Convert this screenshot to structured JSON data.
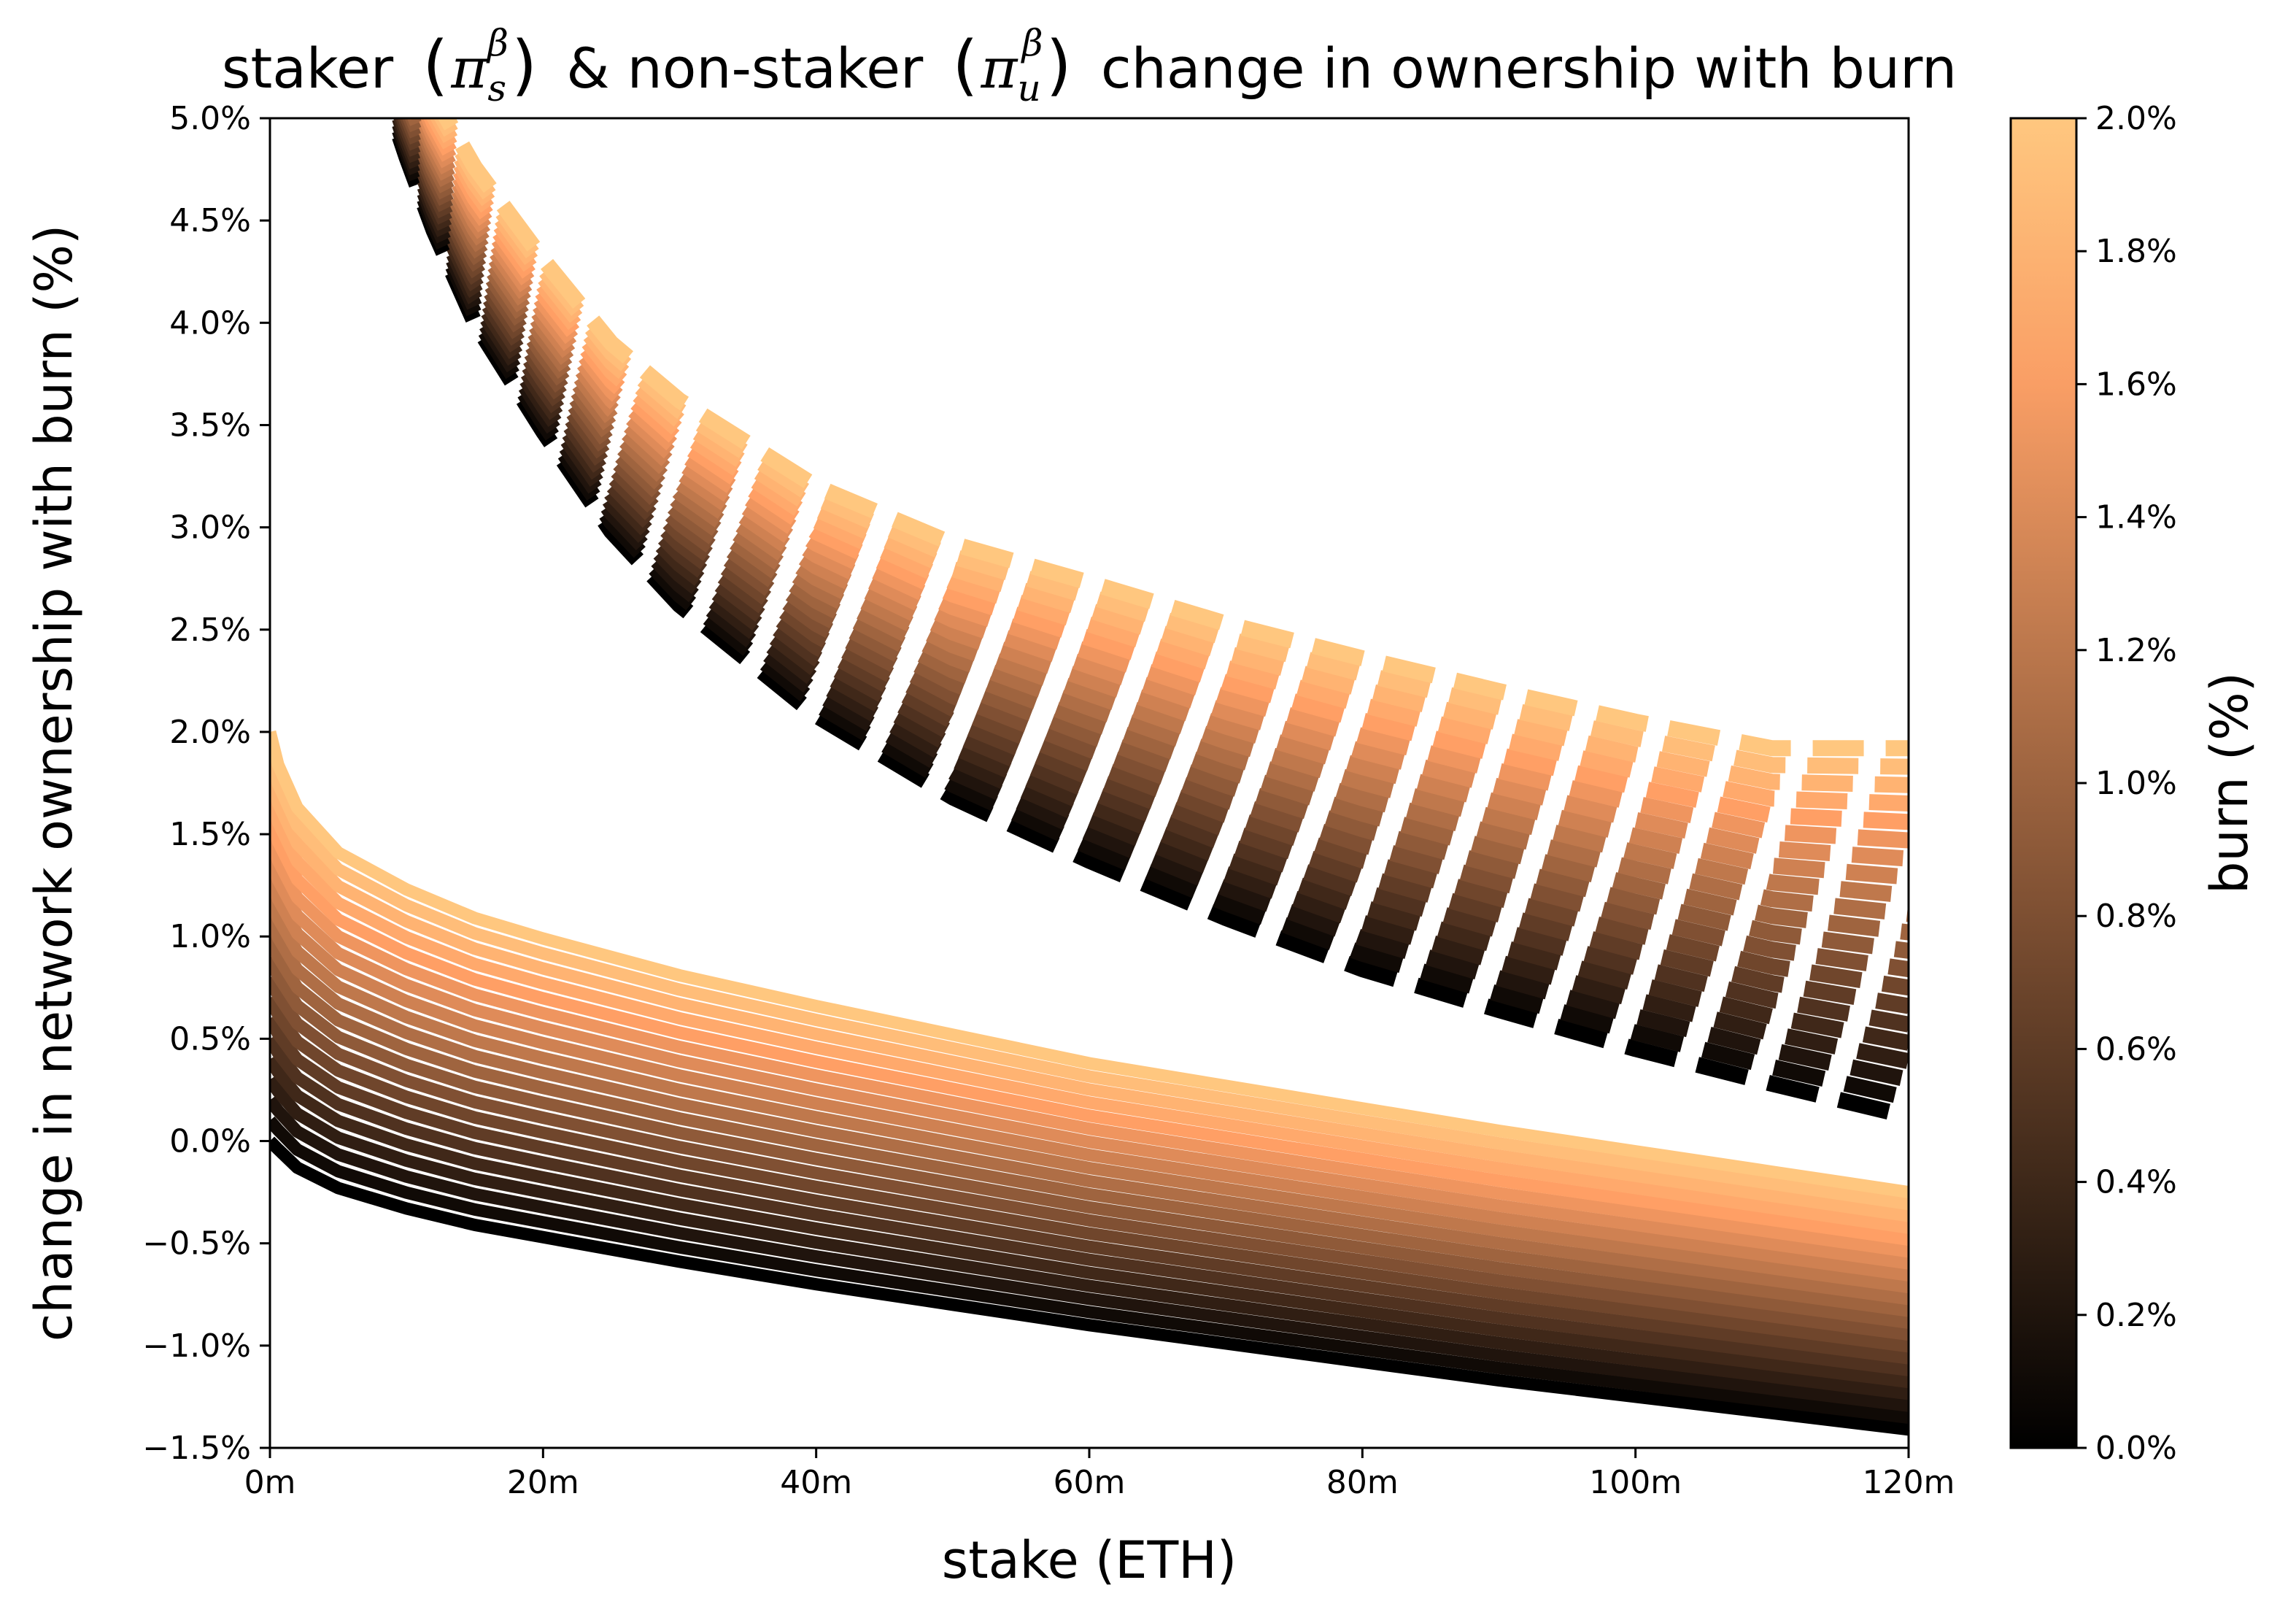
{
  "chart_data": {
    "type": "line",
    "title": {
      "prefix": "staker",
      "staker_symbol": "π",
      "staker_sub": "s",
      "staker_sup": "β",
      "middle": "& non-staker",
      "nonstaker_symbol": "π",
      "nonstaker_sub": "u",
      "nonstaker_sup": "β",
      "suffix": "change in ownership with burn",
      "open_paren": "(",
      "close_paren": ")"
    },
    "xlabel": "stake (ETH)",
    "ylabel": "change in network ownership with burn (%)",
    "xlim": [
      0,
      120000000
    ],
    "ylim": [
      -1.5,
      5.0
    ],
    "x_ticks": [
      {
        "value": 0,
        "label": "0m"
      },
      {
        "value": 20000000,
        "label": "20m"
      },
      {
        "value": 40000000,
        "label": "40m"
      },
      {
        "value": 60000000,
        "label": "60m"
      },
      {
        "value": 80000000,
        "label": "80m"
      },
      {
        "value": 100000000,
        "label": "100m"
      },
      {
        "value": 120000000,
        "label": "120m"
      }
    ],
    "y_ticks": [
      {
        "value": -1.5,
        "label": "−1.5%"
      },
      {
        "value": -1.0,
        "label": "−1.0%"
      },
      {
        "value": -0.5,
        "label": "−0.5%"
      },
      {
        "value": 0.0,
        "label": "0.0%"
      },
      {
        "value": 0.5,
        "label": "0.5%"
      },
      {
        "value": 1.0,
        "label": "1.0%"
      },
      {
        "value": 1.5,
        "label": "1.5%"
      },
      {
        "value": 2.0,
        "label": "2.0%"
      },
      {
        "value": 2.5,
        "label": "2.5%"
      },
      {
        "value": 3.0,
        "label": "3.0%"
      },
      {
        "value": 3.5,
        "label": "3.5%"
      },
      {
        "value": 4.0,
        "label": "4.0%"
      },
      {
        "value": 4.5,
        "label": "4.5%"
      },
      {
        "value": 5.0,
        "label": "5.0%"
      }
    ],
    "burn_min": 0.0,
    "burn_max": 2.0,
    "burn_step": 0.1,
    "staker_series_style": "solid",
    "nonstaker_series_style": "dashed",
    "x_samples": [
      600000,
      2000000,
      5000000,
      10000000,
      15000000,
      20000000,
      30000000,
      40000000,
      50000000,
      60000000,
      70000000,
      80000000,
      90000000,
      100000000,
      110000000,
      120000000
    ],
    "staker_base": [
      -0.04,
      -0.13,
      -0.23,
      -0.33,
      -0.41,
      -0.47,
      -0.59,
      -0.7,
      -0.8,
      -0.9,
      -0.99,
      -1.08,
      -1.17,
      -1.25,
      -1.33,
      -1.41
    ],
    "staker_slope": [
      0.94,
      0.88,
      0.82,
      0.78,
      0.75,
      0.73,
      0.7,
      0.68,
      0.66,
      0.64,
      0.63,
      0.62,
      0.61,
      0.6,
      0.59,
      0.58
    ],
    "nonstaker_x_samples": [
      9500000,
      10000000,
      12000000,
      15000000,
      20000000,
      25000000,
      30000000,
      40000000,
      50000000,
      60000000,
      70000000,
      80000000,
      90000000,
      100000000,
      110000000,
      120000000
    ],
    "nonstaker_base": [
      4.91,
      4.81,
      4.45,
      4.0,
      3.47,
      2.98,
      2.62,
      2.08,
      1.68,
      1.37,
      1.09,
      0.84,
      0.64,
      0.45,
      0.28,
      0.12
    ],
    "nonstaker_slope": [
      0.3,
      0.3,
      0.33,
      0.38,
      0.42,
      0.46,
      0.5,
      0.56,
      0.62,
      0.68,
      0.72,
      0.76,
      0.78,
      0.8,
      0.82,
      0.9
    ],
    "colorbar": {
      "label": "burn (%)",
      "colormap": "copper",
      "color_low": "#000000",
      "color_high": "#FFC77F",
      "ticks": [
        {
          "value": 0.0,
          "label": "0.0%"
        },
        {
          "value": 0.2,
          "label": "0.2%"
        },
        {
          "value": 0.4,
          "label": "0.4%"
        },
        {
          "value": 0.6,
          "label": "0.6%"
        },
        {
          "value": 0.8,
          "label": "0.8%"
        },
        {
          "value": 1.0,
          "label": "1.0%"
        },
        {
          "value": 1.2,
          "label": "1.2%"
        },
        {
          "value": 1.4,
          "label": "1.4%"
        },
        {
          "value": 1.6,
          "label": "1.6%"
        },
        {
          "value": 1.8,
          "label": "1.8%"
        },
        {
          "value": 2.0,
          "label": "2.0%"
        }
      ]
    }
  }
}
